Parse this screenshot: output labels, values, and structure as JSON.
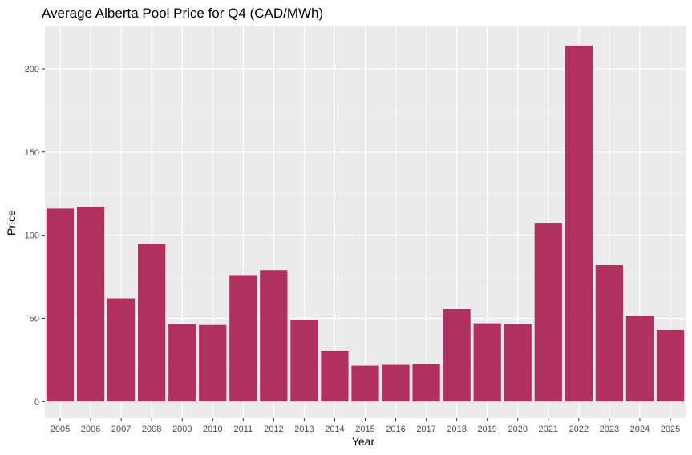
{
  "chart_data": {
    "type": "bar",
    "title": "Average Alberta Pool Price for Q4 (CAD/MWh)",
    "xlabel": "Year",
    "ylabel": "Price",
    "categories": [
      "2005",
      "2006",
      "2007",
      "2008",
      "2009",
      "2010",
      "2011",
      "2012",
      "2013",
      "2014",
      "2015",
      "2016",
      "2017",
      "2018",
      "2019",
      "2020",
      "2021",
      "2022",
      "2023",
      "2024",
      "2025"
    ],
    "values": [
      116,
      117,
      62,
      95,
      46.5,
      46,
      76,
      79,
      49,
      30.5,
      21.5,
      22,
      22.5,
      55.5,
      47,
      46.5,
      107,
      214,
      82,
      51.5,
      43
    ],
    "yticks": [
      0,
      50,
      100,
      150,
      200
    ],
    "ylim": [
      -10,
      226
    ],
    "grid": true,
    "legend": "none",
    "colors": {
      "bar": "#b03060",
      "panel": "#ebebeb",
      "grid_major": "#ffffff",
      "grid_minor": "#f5f5f5"
    }
  }
}
